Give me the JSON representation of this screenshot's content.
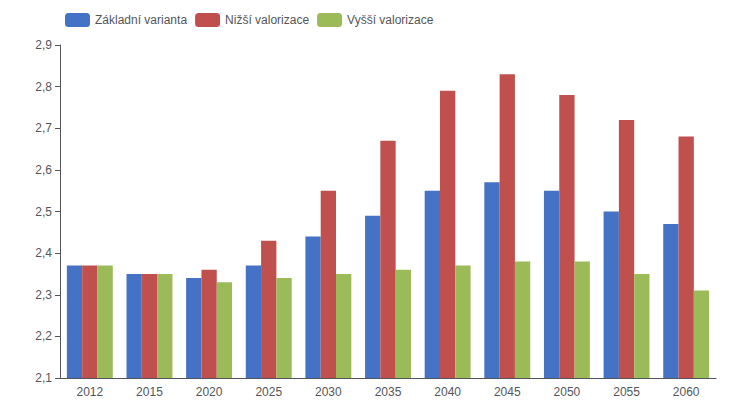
{
  "chart_data": {
    "type": "bar",
    "categories": [
      "2012",
      "2015",
      "2020",
      "2025",
      "2030",
      "2035",
      "2040",
      "2045",
      "2050",
      "2055",
      "2060"
    ],
    "series": [
      {
        "name": "Základní varianta",
        "color": "#4472C4",
        "values": [
          2.37,
          2.35,
          2.34,
          2.37,
          2.44,
          2.49,
          2.55,
          2.57,
          2.55,
          2.5,
          2.47
        ]
      },
      {
        "name": "Nižší valorizace",
        "color": "#C0504D",
        "values": [
          2.37,
          2.35,
          2.36,
          2.43,
          2.55,
          2.67,
          2.79,
          2.83,
          2.78,
          2.72,
          2.68
        ]
      },
      {
        "name": "Vyšší valorizace",
        "color": "#9BBB59",
        "values": [
          2.37,
          2.35,
          2.33,
          2.34,
          2.35,
          2.36,
          2.37,
          2.38,
          2.38,
          2.35,
          2.31
        ]
      }
    ],
    "ylim": [
      2.1,
      2.9
    ],
    "yticks": [
      {
        "value": 2.1,
        "label": "2,1"
      },
      {
        "value": 2.2,
        "label": "2,2"
      },
      {
        "value": 2.3,
        "label": "2,3"
      },
      {
        "value": 2.4,
        "label": "2,4"
      },
      {
        "value": 2.5,
        "label": "2,5"
      },
      {
        "value": 2.6,
        "label": "2,6"
      },
      {
        "value": 2.7,
        "label": "2,7"
      },
      {
        "value": 2.8,
        "label": "2,8"
      },
      {
        "value": 2.9,
        "label": "2,9"
      }
    ],
    "grid": false,
    "legend": "upper left"
  }
}
